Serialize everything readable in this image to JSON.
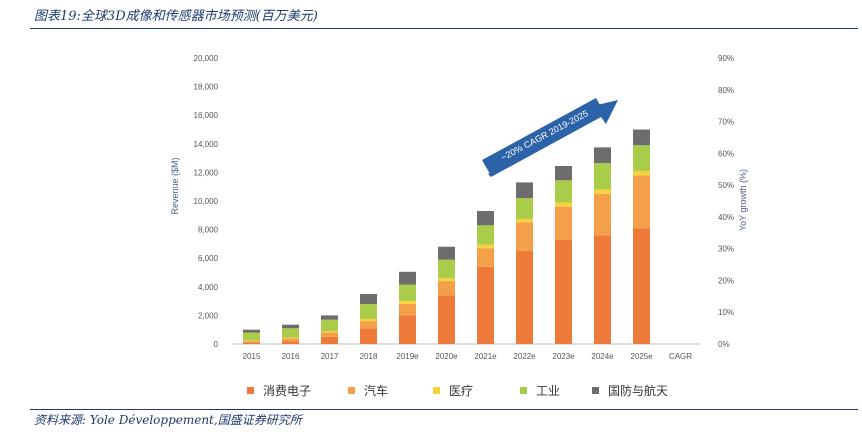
{
  "figure": {
    "title": "图表19:全球3D成像和传感器市场预测(百万美元)",
    "source": "资料来源: Yole Développement,国盛证券研究所"
  },
  "chart_data": {
    "type": "bar",
    "stacked": true,
    "categories": [
      "2015",
      "2016",
      "2017",
      "2018",
      "2019e",
      "2020e",
      "2021e",
      "2022e",
      "2023e",
      "2024e",
      "2025e",
      "CAGR"
    ],
    "series": [
      {
        "name": "消费电子",
        "color": "#ee7a3a",
        "values": [
          100,
          200,
          500,
          1100,
          2000,
          3400,
          5400,
          6500,
          7300,
          7600,
          8100,
          null
        ]
      },
      {
        "name": "汽车",
        "color": "#f4a04a",
        "values": [
          100,
          200,
          300,
          500,
          800,
          1000,
          1300,
          2000,
          2300,
          2900,
          3700,
          null
        ]
      },
      {
        "name": "医疗",
        "color": "#f7d23c",
        "values": [
          50,
          50,
          100,
          150,
          200,
          200,
          250,
          250,
          300,
          300,
          300,
          null
        ]
      },
      {
        "name": "工业",
        "color": "#a9cd4a",
        "values": [
          550,
          650,
          800,
          1050,
          1150,
          1300,
          1350,
          1450,
          1550,
          1850,
          1800,
          null
        ]
      },
      {
        "name": "国防与航天",
        "color": "#6d6d6d",
        "values": [
          200,
          250,
          300,
          700,
          900,
          900,
          1000,
          1100,
          1000,
          1100,
          1100,
          null
        ]
      }
    ],
    "ylabel": "Revenue ($M)",
    "y2label": "YoY growth (%)",
    "ylim": [
      0,
      20000
    ],
    "yticks": [
      "0",
      "2,000",
      "4,000",
      "6,000",
      "8,000",
      "10,000",
      "12,000",
      "14,000",
      "16,000",
      "18,000",
      "20,000"
    ],
    "y2lim": [
      0,
      90
    ],
    "y2ticks": [
      "0%",
      "10%",
      "20%",
      "30%",
      "40%",
      "50%",
      "60%",
      "70%",
      "80%",
      "90%"
    ],
    "annotation": "~20% CAGR 2019-2025",
    "grid": false,
    "legend_position": "bottom"
  }
}
